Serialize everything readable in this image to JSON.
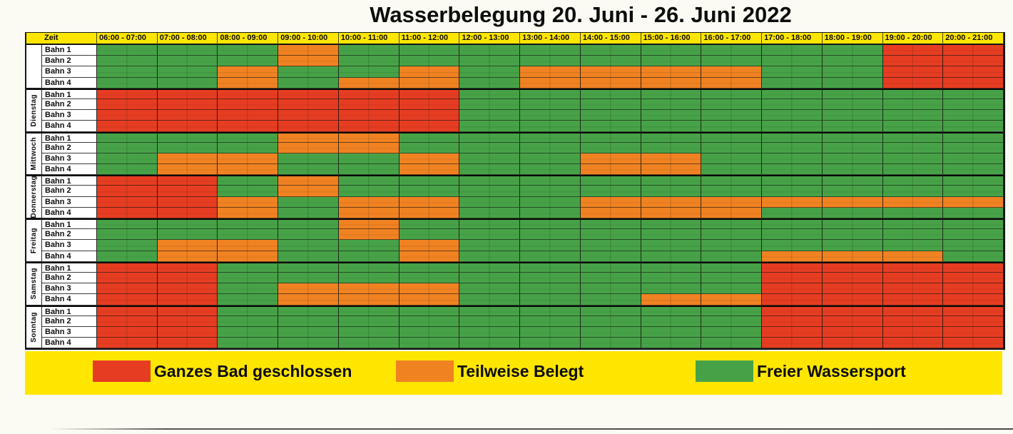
{
  "title": "Wasserbelegung 20. Juni - 26. Juni 2022",
  "colors": {
    "closed": "#e63d22",
    "partial": "#f08222",
    "free": "#47a247",
    "header_bg": "#ffe600",
    "legend_bg": "#ffe600",
    "paper": "#fbfbf4",
    "grid_line": "#1b1b1b"
  },
  "table": {
    "zeit_label": "Zeit",
    "time_slots": [
      "06:00 - 07:00",
      "07:00 - 08:00",
      "08:00 - 09:00",
      "09:00 - 10:00",
      "10:00 - 11:00",
      "11:00 - 12:00",
      "12:00 - 13:00",
      "13:00 - 14:00",
      "14:00 - 15:00",
      "15:00 - 16:00",
      "16:00 - 17:00",
      "17:00 - 18:00",
      "18:00 - 19:00",
      "19:00 - 20:00",
      "20:00 - 21:00"
    ],
    "lane_labels": [
      "Bahn 1",
      "Bahn 2",
      "Bahn 3",
      "Bahn 4"
    ],
    "status_codes": {
      "R": "closed",
      "O": "partial",
      "G": "free"
    },
    "days": [
      {
        "name": "",
        "lanes": [
          "GGGOGGGGGGGGGRR",
          "GGGOGGGGGGGGGRR",
          "GGOGGOGOOOOGGRR",
          "GGOGOOGOOOOGGRR"
        ]
      },
      {
        "name": "Dienstag",
        "lanes": [
          "RRRRRRGGGGGGGGG",
          "RRRRRRGGGGGGGGG",
          "RRRRRRGGGGGGGGG",
          "RRRRRRGGGGGGGGG"
        ]
      },
      {
        "name": "Mittwoch",
        "lanes": [
          "GGGOOGGGGGGGGGG",
          "GGGOOGGGGGGGGGG",
          "GOOGGOGGOOGGGGG",
          "GOOGGOGGOOGGGGG"
        ]
      },
      {
        "name": "Donnerstag",
        "lanes": [
          "RRGOGGGGGGGGGGG",
          "RRGOGGGGGGGGGGG",
          "RROGOOGGOOOOOOO",
          "RROGOOGGOOOGGGG"
        ]
      },
      {
        "name": "Freitag",
        "lanes": [
          "GGGGOGGGGGGGGGG",
          "GGGGOGGGGGGGGGG",
          "GOOGGOGGGGGGGGG",
          "GOOGGOGGGGGOOOG"
        ]
      },
      {
        "name": "Samstag",
        "lanes": [
          "RRGGGGGGGGGRRRR",
          "RRGGGGGGGGGRRRR",
          "RRGOOOGGGGGRRRR",
          "RRGOOOGGGOORRRR"
        ]
      },
      {
        "name": "Sonntag",
        "lanes": [
          "RRGGGGGGGGGRRRR",
          "RRGGGGGGGGGRRRR",
          "RRGGGGGGGGGRRRR",
          "RRGGGGGGGGGRRRR"
        ]
      }
    ]
  },
  "legend": {
    "items": [
      {
        "status": "closed",
        "label": "Ganzes Bad geschlossen"
      },
      {
        "status": "partial",
        "label": "Teilweise Belegt"
      },
      {
        "status": "free",
        "label": "Freier Wassersport"
      }
    ]
  }
}
